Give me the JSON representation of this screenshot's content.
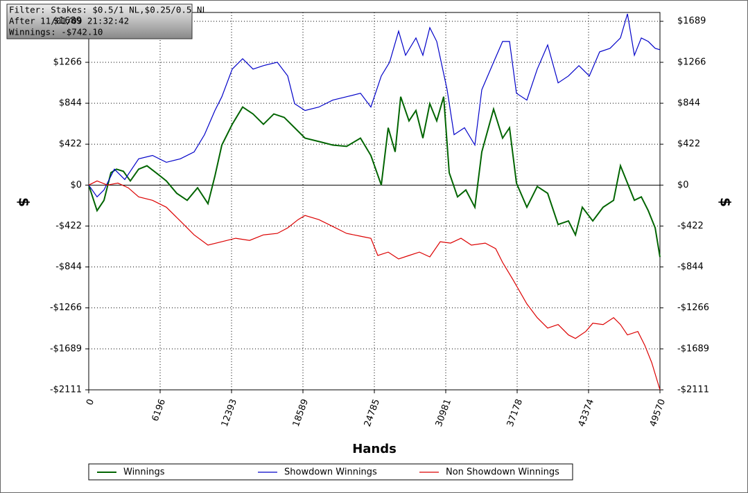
{
  "chart_data": {
    "type": "line",
    "annotations": [
      "Filter: Stakes: $0.5/1 NL,$0.25/0.5 NL",
      "After 11/01/09 21:32:42",
      "Winnings: -$742.10"
    ],
    "x_label": "Hands",
    "y_label": "$",
    "y2_label": "$",
    "xlim": [
      0,
      49570
    ],
    "ylim": [
      -2111,
      1780
    ],
    "xticks": [
      0,
      6196,
      12393,
      18589,
      24785,
      30981,
      37178,
      43374,
      49570
    ],
    "yticks": [
      {
        "value": -2111,
        "label": "-$2111"
      },
      {
        "value": -1689,
        "label": "-$1689"
      },
      {
        "value": -1266,
        "label": "-$1266"
      },
      {
        "value": -844,
        "label": "-$844"
      },
      {
        "value": -422,
        "label": "-$422"
      },
      {
        "value": 0,
        "label": "$0"
      },
      {
        "value": 422,
        "label": "$422"
      },
      {
        "value": 844,
        "label": "$844"
      },
      {
        "value": 1266,
        "label": "$1266"
      },
      {
        "value": 1689,
        "label": "$1689"
      }
    ],
    "grid": true,
    "legend": "bottom",
    "series": [
      {
        "name": "Winnings",
        "color": "#006400",
        "x": [
          0,
          722,
          1324,
          1925,
          2406,
          3008,
          3610,
          4332,
          5054,
          5836,
          6738,
          7640,
          8542,
          9445,
          10347,
          10949,
          11550,
          12453,
          13355,
          14258,
          15160,
          16063,
          16965,
          17868,
          18770,
          19973,
          21176,
          22380,
          23583,
          24486,
          25388,
          25990,
          26591,
          27073,
          27794,
          28396,
          28998,
          29600,
          30201,
          30803,
          31284,
          32006,
          32728,
          33510,
          34112,
          35135,
          35917,
          36518,
          37120,
          38022,
          38925,
          39827,
          40730,
          41632,
          42234,
          42835,
          43738,
          44640,
          45543,
          46144,
          46746,
          47348,
          47949,
          48551,
          49153,
          49570
        ],
        "values": [
          0,
          -263,
          -157,
          128,
          164,
          142,
          43,
          164,
          199,
          128,
          43,
          -85,
          -157,
          -28,
          -192,
          93,
          413,
          627,
          805,
          733,
          627,
          733,
          698,
          591,
          484,
          449,
          413,
          399,
          484,
          306,
          0,
          591,
          342,
          911,
          662,
          769,
          484,
          840,
          662,
          911,
          128,
          -121,
          -50,
          -228,
          342,
          783,
          484,
          591,
          21,
          -228,
          -14,
          -85,
          -406,
          -370,
          -513,
          -228,
          -370,
          -228,
          -157,
          199,
          21,
          -157,
          -121,
          -263,
          -441,
          -742
        ]
      },
      {
        "name": "Showdown Winnings",
        "color": "#0000c8",
        "x": [
          0,
          722,
          1324,
          2226,
          3128,
          4332,
          5535,
          6738,
          7941,
          9144,
          10047,
          10949,
          11550,
          12453,
          13355,
          14258,
          15160,
          16364,
          17266,
          17868,
          18770,
          19973,
          21176,
          22380,
          23583,
          24486,
          25388,
          26110,
          26892,
          27493,
          28396,
          28998,
          29600,
          30201,
          31103,
          31704,
          32607,
          33510,
          34112,
          35135,
          35917,
          36518,
          37120,
          38022,
          38925,
          39827,
          40730,
          41632,
          42535,
          43437,
          44339,
          45241,
          46144,
          46746,
          47348,
          47949,
          48551,
          49153,
          49570
        ],
        "values": [
          0,
          -121,
          -50,
          164,
          57,
          271,
          306,
          235,
          271,
          342,
          520,
          769,
          911,
          1196,
          1303,
          1196,
          1232,
          1267,
          1125,
          840,
          769,
          805,
          876,
          911,
          947,
          805,
          1125,
          1267,
          1588,
          1339,
          1517,
          1339,
          1623,
          1481,
          983,
          520,
          591,
          413,
          983,
          1267,
          1481,
          1481,
          947,
          876,
          1196,
          1445,
          1054,
          1125,
          1232,
          1125,
          1374,
          1410,
          1517,
          1766,
          1339,
          1517,
          1481,
          1410,
          1396
        ]
      },
      {
        "name": "Non Showdown Winnings",
        "color": "#dc0000",
        "x": [
          0,
          722,
          1624,
          2527,
          3429,
          4332,
          5535,
          6738,
          7941,
          9144,
          10347,
          11550,
          12754,
          13957,
          15160,
          16364,
          17266,
          18168,
          18770,
          19973,
          21176,
          22380,
          23583,
          24486,
          25087,
          25990,
          26892,
          27794,
          28697,
          29600,
          30502,
          31404,
          32306,
          33209,
          34413,
          35315,
          35917,
          36819,
          38022,
          38925,
          39827,
          40730,
          41632,
          42234,
          43136,
          43738,
          44640,
          45543,
          46144,
          46746,
          47648,
          48250,
          48852,
          49570
        ],
        "values": [
          0,
          43,
          0,
          21,
          -28,
          -121,
          -157,
          -228,
          -370,
          -513,
          -619,
          -584,
          -548,
          -570,
          -513,
          -498,
          -441,
          -356,
          -313,
          -356,
          -427,
          -498,
          -527,
          -548,
          -726,
          -691,
          -762,
          -726,
          -691,
          -740,
          -584,
          -598,
          -548,
          -619,
          -598,
          -655,
          -797,
          -975,
          -1225,
          -1367,
          -1474,
          -1438,
          -1545,
          -1581,
          -1509,
          -1424,
          -1438,
          -1367,
          -1438,
          -1545,
          -1509,
          -1652,
          -1830,
          -2111
        ]
      }
    ]
  }
}
